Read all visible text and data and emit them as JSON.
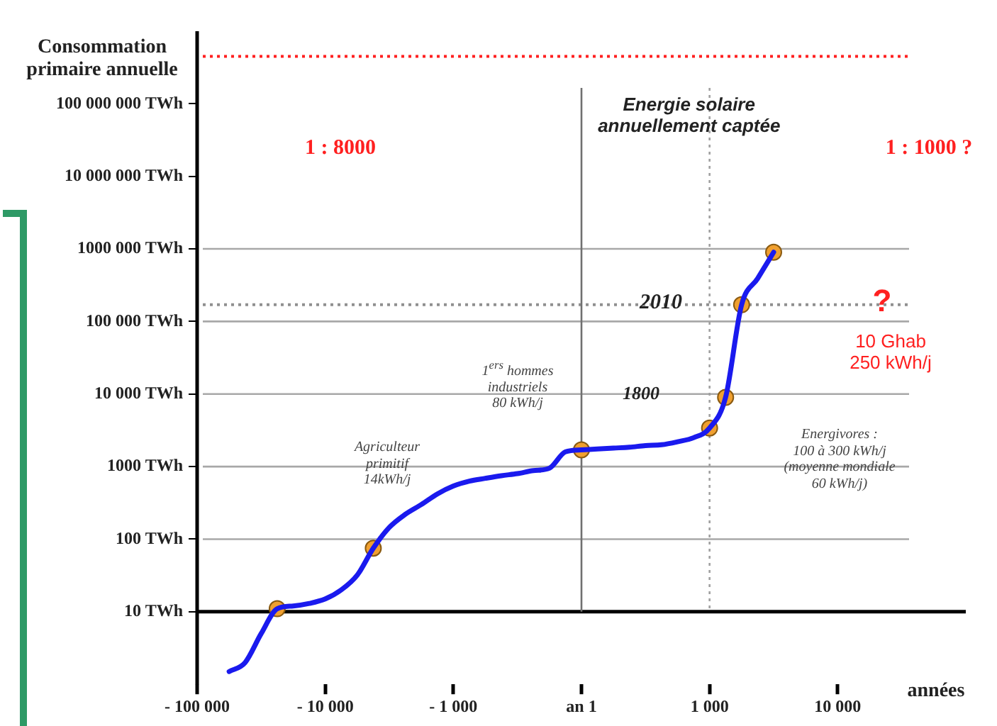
{
  "chart_data": {
    "type": "line",
    "ylabel": "Consommation primaire annuelle",
    "xlabel": "années",
    "categories": [
      "- 100 000",
      null,
      null,
      null,
      null,
      null,
      null,
      null,
      "- 10 000",
      null,
      null,
      null,
      null,
      null,
      null,
      null,
      "- 1 000",
      null,
      null,
      null,
      null,
      null,
      null,
      null,
      "an 1",
      null,
      null,
      null,
      null,
      null,
      null,
      null,
      "1 000",
      null,
      null,
      null,
      null,
      null,
      null,
      null,
      "10 000",
      null,
      null,
      null,
      null,
      null,
      null,
      null,
      null
    ],
    "series": [
      {
        "type": "line",
        "color": "#1a1aee",
        "marker": "none",
        "line_style": "solid",
        "values": [
          null,
          null,
          1.5,
          2,
          5,
          11,
          12,
          13,
          15,
          20,
          32,
          75,
          145,
          220,
          300,
          420,
          540,
          630,
          690,
          750,
          800,
          880,
          950,
          1600,
          1700,
          1750,
          1800,
          1850,
          1950,
          2000,
          2200,
          2500,
          3400,
          9000,
          170000,
          390000,
          900000,
          null,
          null,
          null,
          null,
          null,
          null,
          null,
          null,
          null,
          null,
          null,
          null
        ]
      },
      {
        "type": "scatter",
        "color": "#f0a030",
        "marker": "circle",
        "values": [
          null,
          null,
          null,
          null,
          null,
          11,
          null,
          null,
          null,
          null,
          null,
          75,
          null,
          null,
          null,
          null,
          null,
          null,
          null,
          null,
          null,
          null,
          null,
          null,
          1700,
          null,
          null,
          null,
          null,
          null,
          null,
          null,
          3400,
          9000,
          170000,
          null,
          900000,
          null,
          null,
          null,
          null,
          null,
          null,
          null,
          null,
          null,
          null,
          null,
          null
        ]
      }
    ],
    "log": "y",
    "ylim": [
      1,
      1000000000
    ],
    "yticks": [
      {
        "value": 10,
        "label": "10 TWh"
      },
      {
        "value": 100,
        "label": "100 TWh"
      },
      {
        "value": 1000,
        "label": "1000 TWh"
      },
      {
        "value": 10000,
        "label": "10 000 TWh"
      },
      {
        "value": 100000,
        "label": "100 000 TWh"
      },
      {
        "value": 1000000,
        "label": "1000 000 TWh"
      },
      {
        "value": 10000000,
        "label": "10 000 000 TWh"
      },
      {
        "value": 100000000,
        "label": "100 000 000 TWh"
      }
    ],
    "ref_lines": [
      {
        "axis": "y",
        "value": 450000000,
        "label": "Energie solaire\nannuellement captée",
        "color": "#ff2020",
        "line_style": "dotted"
      },
      {
        "axis": "y",
        "value": 1000000,
        "color": "#a8a8a8",
        "line_style": "solid"
      },
      {
        "axis": "y",
        "value": 170000,
        "color": "#909090",
        "line_style": "dotted"
      },
      {
        "axis": "y",
        "value": 100000,
        "color": "#a8a8a8",
        "line_style": "solid"
      },
      {
        "axis": "y",
        "value": 10000,
        "color": "#a8a8a8",
        "line_style": "solid"
      },
      {
        "axis": "y",
        "value": 1000,
        "color": "#a8a8a8",
        "line_style": "solid"
      },
      {
        "axis": "y",
        "value": 100,
        "color": "#a8a8a8",
        "line_style": "solid"
      },
      {
        "axis": "y",
        "value": 10,
        "color": "#000000",
        "line_style": "solid"
      },
      {
        "axis": "x",
        "value": "an 1",
        "color": "#707070",
        "line_style": "solid"
      },
      {
        "axis": "x",
        "value": "1 000",
        "color": "#a0a0a0",
        "line_style": "dotted"
      }
    ],
    "annotations": [
      "1 : 8000",
      "1 : 1000 ?",
      "2010",
      "?",
      "10 Ghab\n250 kWh/j",
      "1$^{ers}$ hommes\nindustriels\n80 kWh/j",
      "1800",
      "Energivores :\n100 à 300 kWh/j\n(moyenne mondiale\n60 kWh/j)",
      "Agriculteur\nprimitif\n14kWh/j"
    ]
  }
}
